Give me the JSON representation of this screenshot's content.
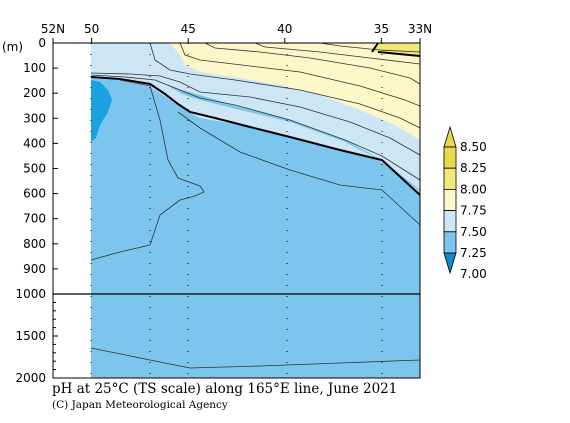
{
  "chart_data": {
    "type": "contour",
    "caption": "pH at 25°C (TS scale) along 165°E line, June 2021",
    "credit": "(C) Japan Meteorological Agency",
    "depth_unit": "(m)",
    "x_axis": {
      "tick_labels": [
        "52N",
        "50",
        "45",
        "40",
        "35",
        "33N"
      ],
      "tick_lat": [
        52,
        50,
        45,
        40,
        35,
        33
      ],
      "range": [
        52,
        33
      ]
    },
    "y_axis_upper": {
      "tick_labels": [
        "0",
        "100",
        "200",
        "300",
        "400",
        "500",
        "600",
        "700",
        "800",
        "900",
        "1000"
      ],
      "tick_values": [
        0,
        100,
        200,
        300,
        400,
        500,
        600,
        700,
        800,
        900,
        1000
      ],
      "range": [
        0,
        1000
      ]
    },
    "y_axis_lower": {
      "tick_labels": [
        "1500",
        "2000"
      ],
      "tick_values": [
        1500,
        2000
      ],
      "range": [
        1000,
        2000
      ]
    },
    "colorbar": {
      "levels": [
        "8.50",
        "8.25",
        "8.00",
        "7.75",
        "7.50",
        "7.25",
        "7.00"
      ],
      "level_values": [
        8.5,
        8.25,
        8.0,
        7.75,
        7.5,
        7.25,
        7.0
      ],
      "colors": {
        "above_8_25": "#e8d84a",
        "8_00_8_25": "#f2e87a",
        "7_75_8_00": "#fbf7c8",
        "7_50_7_75": "#cde6f6",
        "7_25_7_50": "#7cc5ec",
        "7_00_7_25": "#1aa2e0",
        "below_7_00": "#0e86d0"
      }
    },
    "sections": {
      "no_data_lat_range": [
        52,
        50
      ],
      "band_7_75_8_00_boundary_upper": [
        [
          50,
          0
        ],
        [
          48,
          0
        ],
        [
          46,
          0
        ],
        [
          44,
          100
        ],
        [
          42,
          140
        ],
        [
          40,
          160
        ],
        [
          38,
          180
        ],
        [
          36,
          220
        ],
        [
          34,
          300
        ],
        [
          33,
          360
        ]
      ],
      "band_7_50_7_75_boundary": [
        [
          50,
          130
        ],
        [
          48,
          140
        ],
        [
          46,
          180
        ],
        [
          45,
          260
        ],
        [
          43,
          300
        ],
        [
          40,
          360
        ],
        [
          37,
          410
        ],
        [
          35,
          470
        ],
        [
          33,
          600
        ]
      ],
      "band_7_25_patch": [
        [
          50,
          140
        ],
        [
          49.6,
          160
        ],
        [
          49.4,
          220
        ],
        [
          49.8,
          300
        ],
        [
          50,
          340
        ]
      ],
      "contour_8_25_patch": [
        [
          34.5,
          40
        ],
        [
          34,
          10
        ],
        [
          33,
          20
        ]
      ]
    }
  }
}
